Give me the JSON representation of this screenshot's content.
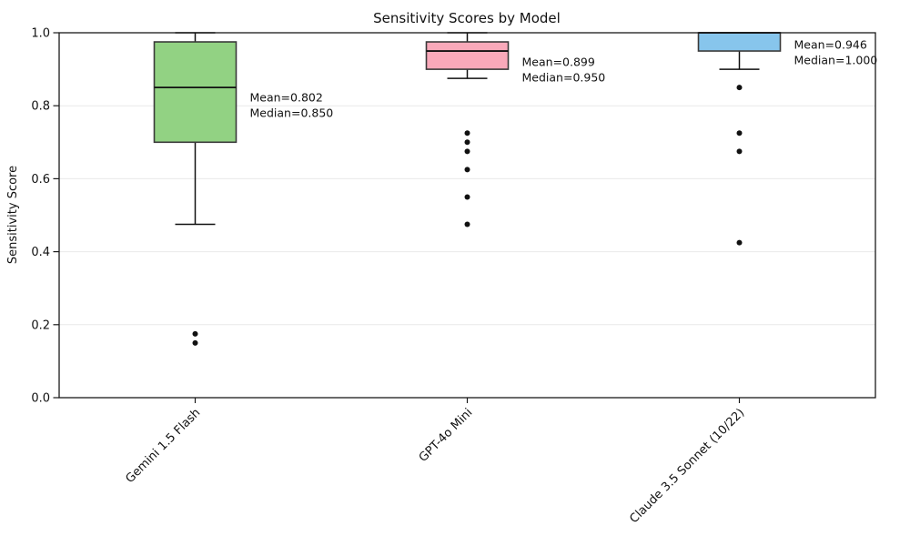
{
  "chart_data": {
    "type": "box",
    "title": "Sensitivity Scores by Model",
    "ylabel": "Sensitivity Score",
    "xlabel": "",
    "ylim": [
      0.0,
      1.0
    ],
    "ytick_values": [
      0.0,
      0.2,
      0.4,
      0.6,
      0.8,
      1.0
    ],
    "ytick_labels": [
      "0.0",
      "0.2",
      "0.4",
      "0.6",
      "0.8",
      "1.0"
    ],
    "grid": "horizontal-light",
    "legend": "none",
    "colors": {
      "background": "#ffffff",
      "grid": "#e9e9e9",
      "spine": "#1a1a1a",
      "box_edge": "#3a3a3a",
      "median": "#111111",
      "whisker": "#111111",
      "flier": "#111111",
      "text": "#111111"
    },
    "series": [
      {
        "label": "Gemini 1.5 Flash",
        "fill": "#92d283",
        "whisker_low": 0.475,
        "q1": 0.7,
        "median": 0.85,
        "q3": 0.975,
        "whisker_high": 1.0,
        "outliers": [
          0.175,
          0.15
        ],
        "mean": 0.802,
        "mean_label": "Mean=0.802",
        "median_label": "Median=0.850"
      },
      {
        "label": "GPT-4o Mini",
        "fill": "#f9a9ba",
        "whisker_low": 0.875,
        "q1": 0.9,
        "median": 0.95,
        "q3": 0.975,
        "whisker_high": 1.0,
        "outliers": [
          0.725,
          0.7,
          0.675,
          0.625,
          0.55,
          0.475
        ],
        "mean": 0.899,
        "mean_label": "Mean=0.899",
        "median_label": "Median=0.950"
      },
      {
        "label": "Claude 3.5 Sonnet (10/22)",
        "fill": "#87c5ec",
        "whisker_low": 0.9,
        "q1": 0.95,
        "median": 1.0,
        "q3": 1.0,
        "whisker_high": 1.0,
        "outliers": [
          0.85,
          0.725,
          0.675,
          0.425
        ],
        "mean": 0.946,
        "mean_label": "Mean=0.946",
        "median_label": "Median=1.000"
      }
    ]
  }
}
